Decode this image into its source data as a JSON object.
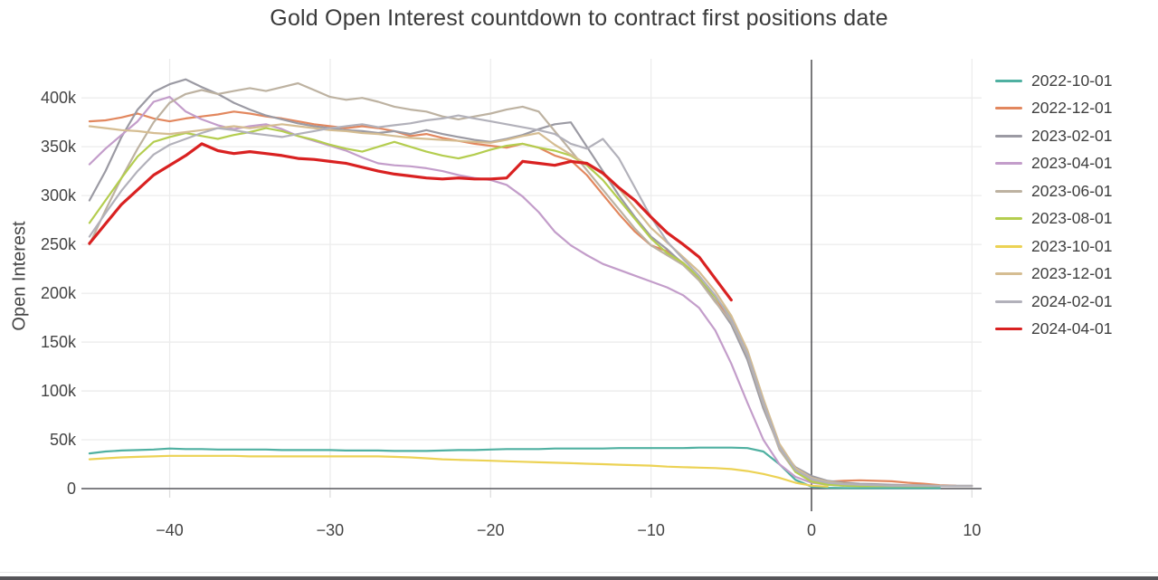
{
  "chart_data": {
    "type": "line",
    "title": "Gold Open Interest countdown to contract first positions date",
    "xlabel": "",
    "ylabel": "Open Interest",
    "legend_position": "right",
    "grid": true,
    "x_axis": {
      "range": [
        -45.5,
        10.6
      ],
      "zero_line": true,
      "ticks": [
        {
          "v": -40,
          "label": "−40"
        },
        {
          "v": -30,
          "label": "−30"
        },
        {
          "v": -20,
          "label": "−20"
        },
        {
          "v": -10,
          "label": "−10"
        },
        {
          "v": 0,
          "label": "0"
        },
        {
          "v": 10,
          "label": "10"
        }
      ]
    },
    "y_axis": {
      "range_thousands": [
        0,
        440
      ],
      "ticks": [
        {
          "v": 0,
          "label": "0"
        },
        {
          "v": 50,
          "label": "50k"
        },
        {
          "v": 100,
          "label": "100k"
        },
        {
          "v": 150,
          "label": "150k"
        },
        {
          "v": 200,
          "label": "200k"
        },
        {
          "v": 250,
          "label": "250k"
        },
        {
          "v": 300,
          "label": "300k"
        },
        {
          "v": 350,
          "label": "350k"
        },
        {
          "v": 400,
          "label": "400k"
        }
      ]
    },
    "colors": {
      "grid": "#ececec",
      "zero_axis": "#57575b",
      "tick_text": "#444444",
      "title_text": "#3a3a3a"
    },
    "series": [
      {
        "name": "2022-10-01",
        "color": "#4fb0a1",
        "width": 2.2,
        "x0": -45,
        "dx": 1,
        "values_k": [
          36,
          38,
          39,
          39.5,
          40,
          41,
          40.5,
          40.5,
          40,
          40,
          40,
          40,
          39.5,
          39.5,
          39.5,
          39.5,
          39,
          39,
          39,
          38.5,
          38.5,
          38.5,
          39,
          39.5,
          39.5,
          40,
          40.5,
          40.5,
          40.5,
          41,
          41,
          41,
          41,
          41.5,
          41.5,
          41.5,
          41.5,
          41.5,
          42,
          42,
          42,
          41.5,
          38,
          25,
          9,
          2,
          0.8,
          0.6,
          0.5,
          0.5,
          0.5,
          0.5,
          0.5,
          0.5
        ]
      },
      {
        "name": "2022-12-01",
        "color": "#e2875e",
        "width": 2.2,
        "x0": -45,
        "dx": 1,
        "values_k": [
          376,
          377,
          380,
          384,
          379,
          376,
          379,
          381,
          383,
          386,
          384,
          381,
          379,
          376,
          373,
          371,
          369,
          371,
          369,
          366,
          361,
          363,
          359,
          356,
          353,
          351,
          349,
          353,
          349,
          341,
          336,
          321,
          301,
          281,
          263,
          249,
          243,
          231,
          216,
          196,
          171,
          136,
          86,
          41,
          18,
          10,
          7,
          8,
          8.5,
          8,
          7.5,
          6,
          5,
          3.5,
          3
        ]
      },
      {
        "name": "2023-02-01",
        "color": "#9b9aa3",
        "width": 2.2,
        "x0": -45,
        "dx": 1,
        "values_k": [
          295,
          325,
          360,
          388,
          406,
          414,
          419,
          411,
          404,
          395,
          388,
          382,
          378,
          374,
          371,
          369,
          367,
          366,
          364,
          366,
          363,
          367,
          363,
          360,
          357,
          355,
          358,
          362,
          368,
          373,
          375,
          350,
          325,
          300,
          278,
          258,
          245,
          230,
          214,
          192,
          168,
          132,
          82,
          42,
          22,
          13,
          8,
          6,
          5,
          4.5,
          4,
          3.5,
          3.5,
          3,
          3,
          3
        ]
      },
      {
        "name": "2023-04-01",
        "color": "#c39dca",
        "width": 2.2,
        "x0": -45,
        "dx": 1,
        "values_k": [
          332,
          348,
          362,
          376,
          396,
          401,
          386,
          378,
          372,
          368,
          371,
          373,
          368,
          361,
          356,
          351,
          346,
          339,
          333,
          331,
          330,
          328,
          325,
          321,
          318,
          316,
          311,
          299,
          283,
          263,
          249,
          239,
          230,
          224,
          218,
          212,
          206,
          198,
          185,
          162,
          128,
          88,
          50,
          25,
          12,
          6,
          4,
          3
        ]
      },
      {
        "name": "2023-06-01",
        "color": "#bdb2a1",
        "width": 2.2,
        "x0": -45,
        "dx": 1,
        "values_k": [
          250,
          285,
          318,
          348,
          375,
          395,
          404,
          408,
          404,
          407,
          410,
          407,
          411,
          415,
          408,
          401,
          398,
          400,
          396,
          391,
          388,
          386,
          381,
          378,
          381,
          384,
          388,
          391,
          386,
          366,
          346,
          326,
          306,
          286,
          266,
          249,
          239,
          229,
          213,
          191,
          171,
          136,
          86,
          40,
          17,
          9,
          5,
          4,
          3.5,
          3,
          3,
          3,
          3,
          2.5
        ]
      },
      {
        "name": "2023-08-01",
        "color": "#b4cd4f",
        "width": 2.2,
        "x0": -45,
        "dx": 1,
        "values_k": [
          272,
          295,
          318,
          340,
          355,
          360,
          364,
          361,
          358,
          362,
          365,
          369,
          366,
          361,
          357,
          352,
          348,
          345,
          350,
          355,
          350,
          345,
          341,
          338,
          342,
          347,
          351,
          353,
          349,
          346,
          341,
          331,
          316,
          296,
          276,
          256,
          241,
          231,
          216,
          196,
          176,
          141,
          91,
          44,
          17,
          7,
          4,
          3,
          2.5,
          2.5,
          2.5,
          2.5,
          2.5,
          2.5
        ]
      },
      {
        "name": "2023-10-01",
        "color": "#ecd254",
        "width": 2.2,
        "x0": -45,
        "dx": 1,
        "values_k": [
          30,
          31,
          32,
          32.5,
          33,
          33.5,
          33.5,
          33.5,
          33.5,
          33.5,
          33,
          33,
          33,
          33,
          33,
          33,
          33,
          33,
          33,
          32.5,
          32,
          31,
          30,
          29.5,
          29,
          28.5,
          28,
          27.5,
          27,
          26.5,
          26,
          25.5,
          25,
          24.5,
          24,
          23.5,
          22.5,
          22,
          21.5,
          21,
          20,
          18,
          15,
          11,
          6,
          3,
          2
        ]
      },
      {
        "name": "2023-12-01",
        "color": "#d5bd92",
        "width": 2.2,
        "x0": -45,
        "dx": 1,
        "values_k": [
          371,
          369,
          367,
          366,
          364,
          363,
          365,
          367,
          369,
          371,
          369,
          371,
          373,
          371,
          369,
          367,
          366,
          364,
          363,
          361,
          359,
          358,
          357,
          356,
          355,
          354,
          357,
          361,
          364,
          352,
          342,
          332,
          322,
          307,
          287,
          267,
          252,
          237,
          222,
          202,
          177,
          142,
          92,
          46,
          21,
          11,
          7,
          5,
          4,
          3.5,
          3,
          3,
          3,
          3,
          2.5,
          2.5
        ]
      },
      {
        "name": "2024-02-01",
        "color": "#b2b1ba",
        "width": 2.2,
        "x0": -45,
        "dx": 1,
        "values_k": [
          258,
          282,
          305,
          325,
          342,
          352,
          358,
          364,
          369,
          367,
          364,
          362,
          360,
          363,
          366,
          369,
          371,
          373,
          370,
          372,
          374,
          377,
          379,
          382,
          379,
          376,
          373,
          370,
          367,
          363,
          353,
          348,
          358,
          338,
          308,
          278,
          253,
          235,
          218,
          198,
          173,
          138,
          88,
          43,
          19,
          10,
          6,
          4.5,
          4,
          3.5,
          3,
          3,
          3,
          2.5,
          2.5,
          2.5
        ]
      },
      {
        "name": "2024-04-01",
        "color": "#d92121",
        "width": 3.2,
        "x0": -45,
        "dx": 1,
        "values_k": [
          251,
          271,
          291,
          306,
          321,
          331,
          341,
          353,
          346,
          343,
          345,
          343,
          341,
          338,
          337,
          335,
          333,
          329,
          325,
          322,
          320,
          318,
          317,
          318,
          317,
          317,
          318,
          335,
          333,
          331,
          335,
          333,
          323,
          308,
          295,
          278,
          262,
          250,
          237,
          215,
          193
        ]
      }
    ]
  }
}
